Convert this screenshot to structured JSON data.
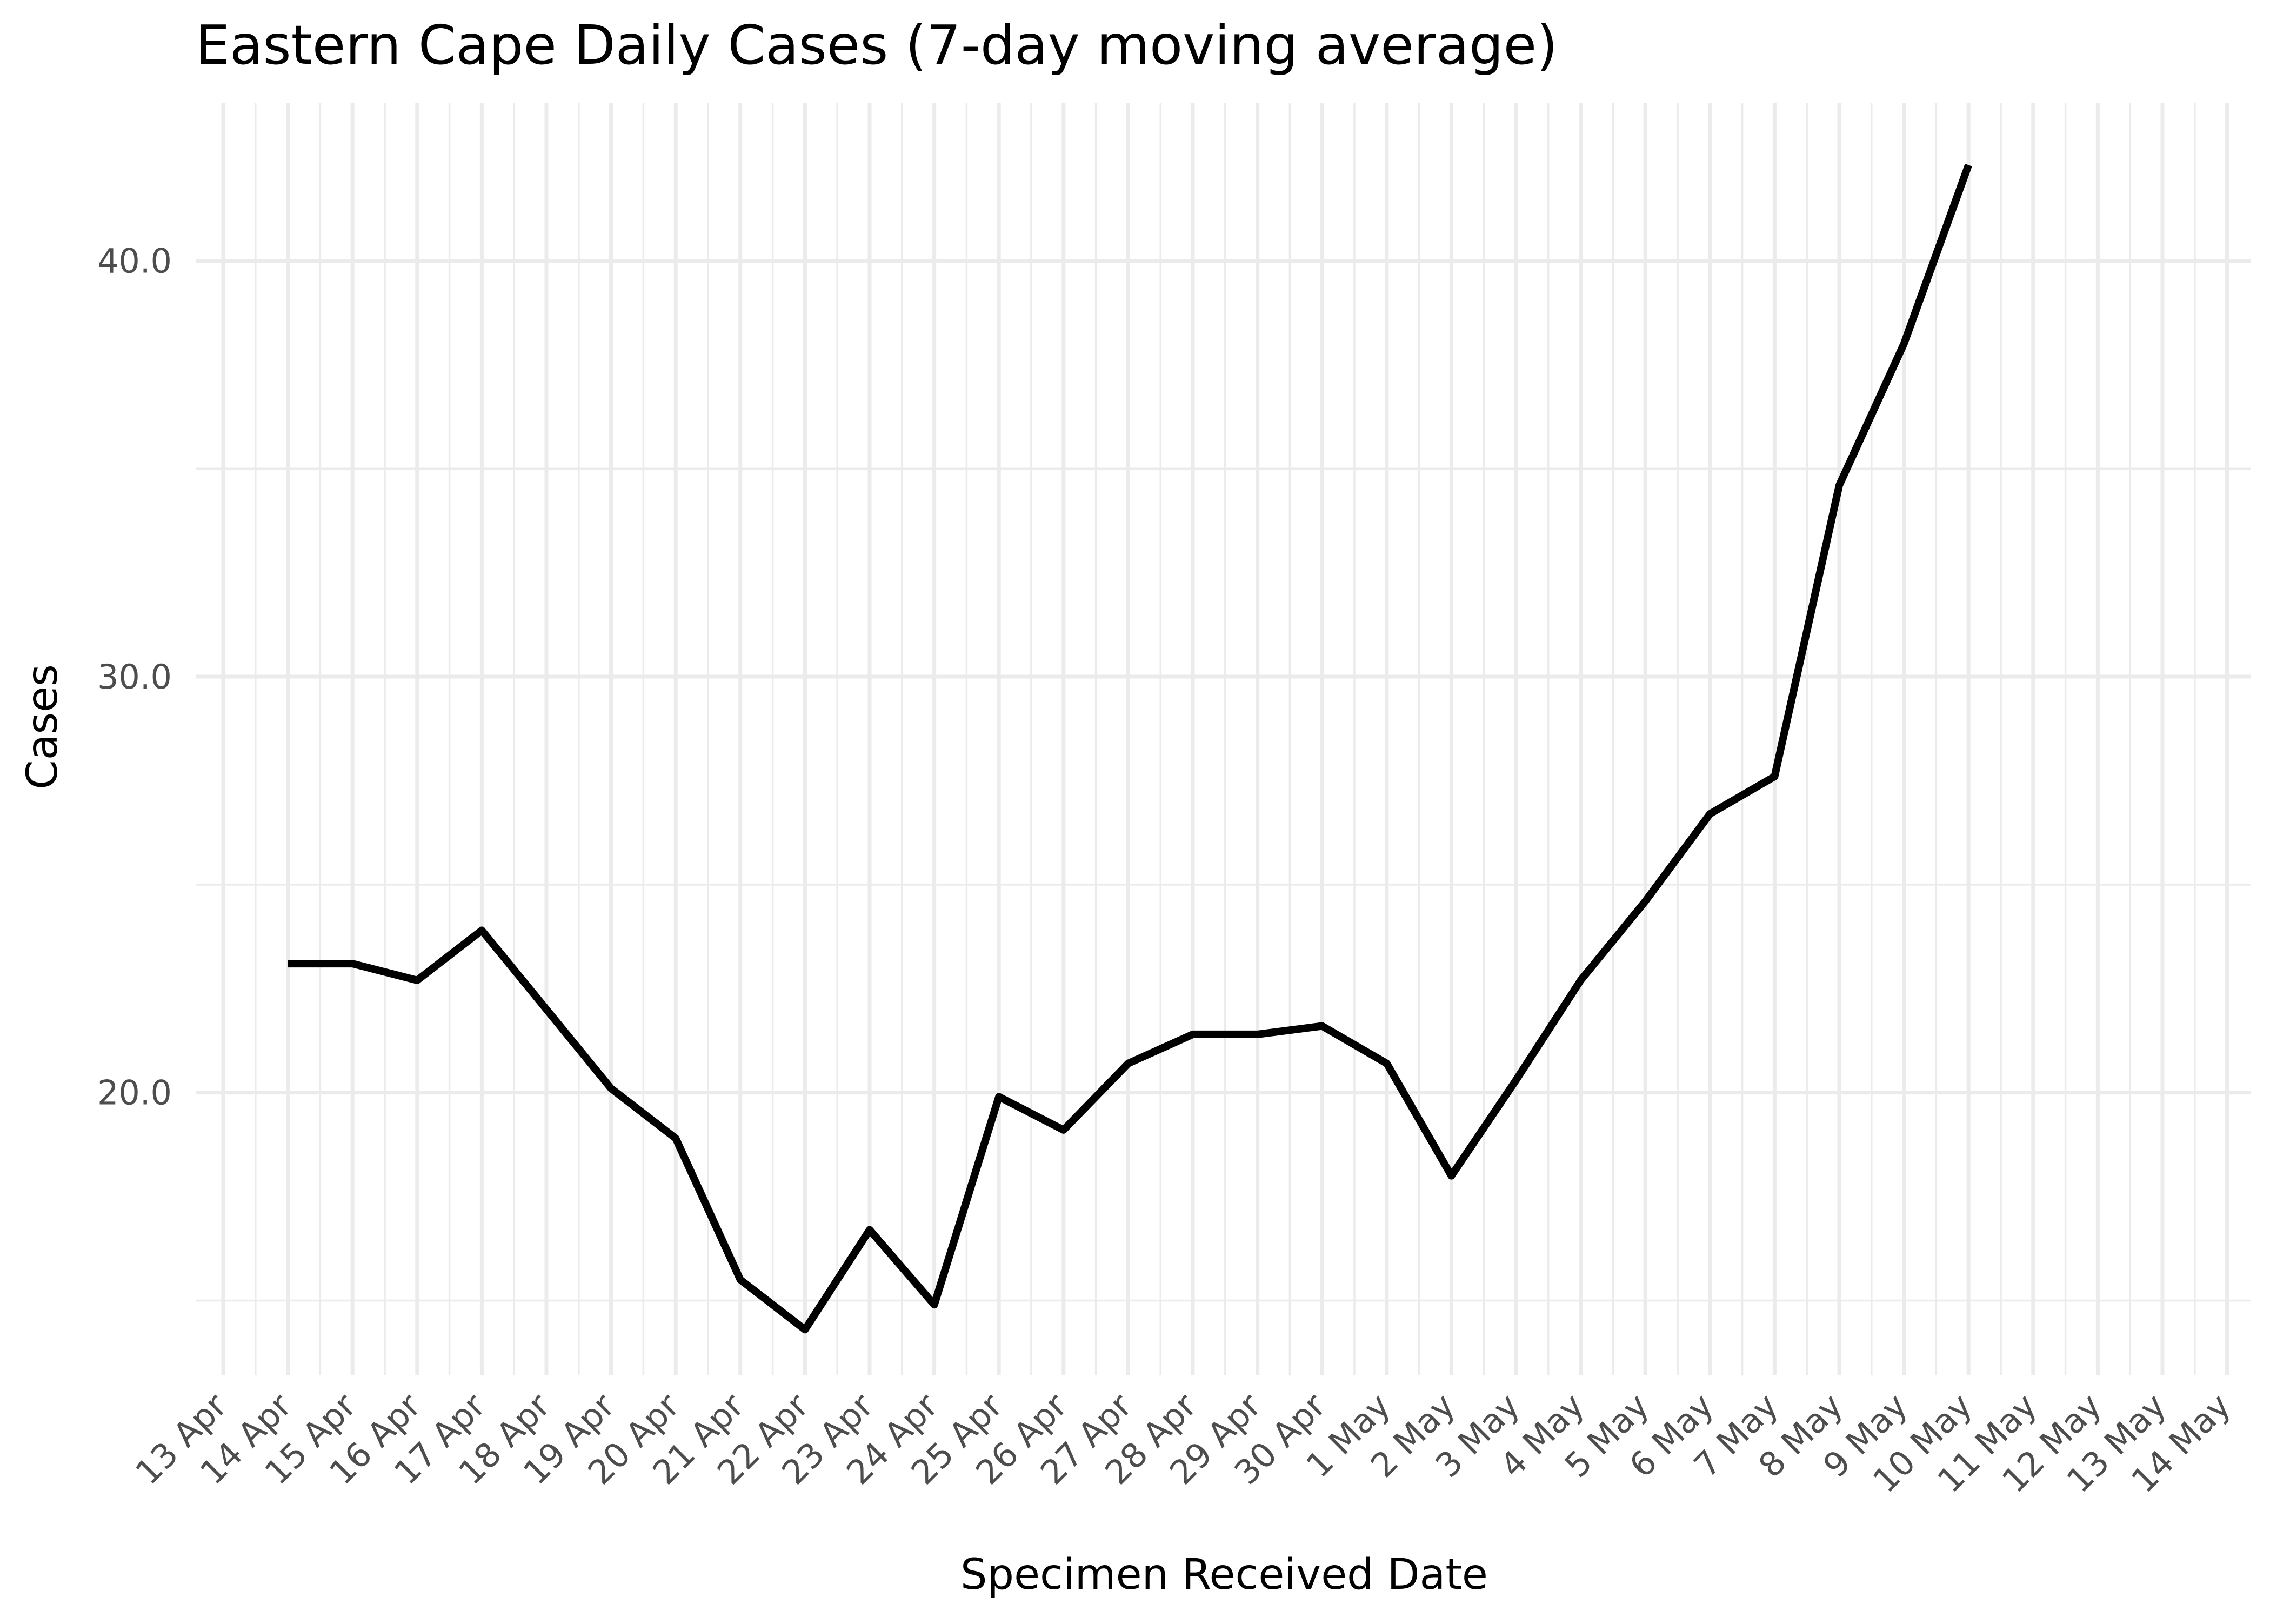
{
  "chart_data": {
    "type": "line",
    "title": "Eastern Cape Daily Cases (7-day moving average)",
    "xlabel": "Specimen Received Date",
    "ylabel": "Cases",
    "x_tick_labels": [
      "13 Apr",
      "14 Apr",
      "15 Apr",
      "16 Apr",
      "17 Apr",
      "18 Apr",
      "19 Apr",
      "20 Apr",
      "21 Apr",
      "22 Apr",
      "23 Apr",
      "24 Apr",
      "25 Apr",
      "26 Apr",
      "27 Apr",
      "28 Apr",
      "29 Apr",
      "30 Apr",
      "1 May",
      "2 May",
      "3 May",
      "4 May",
      "5 May",
      "6 May",
      "7 May",
      "8 May",
      "9 May",
      "10 May",
      "11 May",
      "12 May",
      "13 May",
      "14 May"
    ],
    "y_ticks": [
      20,
      30,
      40
    ],
    "y_tick_labels": [
      "20.0",
      "30.0",
      "40.0"
    ],
    "ylim": [
      13.2,
      43.8
    ],
    "xlim": [
      "13 Apr",
      "14 May"
    ],
    "grid": true,
    "line_color": "#000000",
    "series": [
      {
        "x": [
          "14 Apr",
          "15 Apr",
          "16 Apr",
          "17 Apr",
          "18 Apr",
          "19 Apr",
          "20 Apr",
          "21 Apr",
          "22 Apr",
          "23 Apr",
          "24 Apr",
          "25 Apr",
          "26 Apr",
          "27 Apr",
          "28 Apr",
          "29 Apr",
          "30 Apr",
          "1 May",
          "2 May",
          "3 May",
          "4 May",
          "5 May",
          "6 May",
          "7 May",
          "8 May",
          "9 May",
          "10 May"
        ],
        "values": [
          23.1,
          23.1,
          22.7,
          23.9,
          22.0,
          20.1,
          18.9,
          15.5,
          14.3,
          16.7,
          14.9,
          19.9,
          19.1,
          20.7,
          21.4,
          21.4,
          21.6,
          20.7,
          18.0,
          20.3,
          22.7,
          24.6,
          26.7,
          27.6,
          34.6,
          38.0,
          42.3
        ]
      }
    ]
  }
}
